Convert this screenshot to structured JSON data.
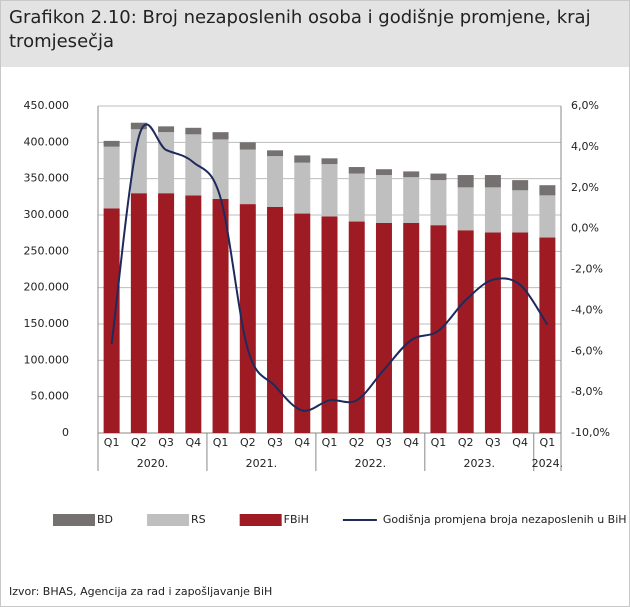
{
  "chart_data": {
    "type": "stacked_bar_line",
    "title": "Grafikon 2.10: Broj nezaposlenih osoba i godišnje promjene, kraj tromjesečja",
    "source": "Izvor: BHAS, Agencija za rad i zapošljavanje BiH",
    "categories": [
      "Q1",
      "Q2",
      "Q3",
      "Q4",
      "Q1",
      "Q2",
      "Q3",
      "Q4",
      "Q1",
      "Q2",
      "Q3",
      "Q4",
      "Q1",
      "Q2",
      "Q3",
      "Q4",
      "Q1"
    ],
    "year_groups": [
      {
        "label": "2020.",
        "size": 4
      },
      {
        "label": "2021.",
        "size": 4
      },
      {
        "label": "2022.",
        "size": 4
      },
      {
        "label": "2023.",
        "size": 4
      },
      {
        "label": "2024.",
        "size": 1
      }
    ],
    "series": [
      {
        "name": "FBiH",
        "color": "#9e1b24",
        "values": [
          309000,
          330000,
          330000,
          327000,
          322000,
          315000,
          311000,
          302000,
          298000,
          291000,
          289000,
          289000,
          286000,
          279000,
          276000,
          276000,
          269000
        ]
      },
      {
        "name": "RS",
        "color": "#bfbfbf",
        "values": [
          85000,
          88000,
          84000,
          84000,
          82000,
          75000,
          70000,
          70000,
          72000,
          66000,
          66000,
          63000,
          62000,
          59000,
          62000,
          58000,
          58000
        ]
      },
      {
        "name": "BD",
        "color": "#767171",
        "values": [
          8000,
          9000,
          8000,
          9000,
          10000,
          10000,
          8000,
          10000,
          8000,
          9000,
          8000,
          8000,
          9000,
          17000,
          17000,
          14000,
          14000
        ]
      },
      {
        "name": "Godišnja promjena broja nezaposlenih u BiH (d.s.)",
        "color": "#1f2a5c",
        "axis": "y2",
        "values": [
          -5.65,
          4.5,
          3.85,
          3.25,
          1.5,
          -5.9,
          -7.7,
          -8.9,
          -8.4,
          -8.4,
          -6.9,
          -5.45,
          -5.0,
          -3.5,
          -2.5,
          -2.75,
          -4.7
        ]
      }
    ],
    "ylim": [
      0,
      450000
    ],
    "yticks": [
      {
        "value": 0,
        "label": "0"
      },
      {
        "value": 50000,
        "label": "50.000"
      },
      {
        "value": 100000,
        "label": "100.000"
      },
      {
        "value": 150000,
        "label": "150.000"
      },
      {
        "value": 200000,
        "label": "200.000"
      },
      {
        "value": 250000,
        "label": "250.000"
      },
      {
        "value": 300000,
        "label": "300.000"
      },
      {
        "value": 350000,
        "label": "350.000"
      },
      {
        "value": 400000,
        "label": "400.000"
      },
      {
        "value": 450000,
        "label": "450.000"
      }
    ],
    "y2lim": [
      -10,
      6
    ],
    "y2ticks": [
      {
        "value": -10,
        "label": "-10,0%"
      },
      {
        "value": -8,
        "label": "-8,0%"
      },
      {
        "value": -6,
        "label": "-6,0%"
      },
      {
        "value": -4,
        "label": "-4,0%"
      },
      {
        "value": -2,
        "label": "-2,0%"
      },
      {
        "value": 0,
        "label": "0,0%"
      },
      {
        "value": 2,
        "label": "2,0%"
      },
      {
        "value": 4,
        "label": "4,0%"
      },
      {
        "value": 6,
        "label": "6,0%"
      }
    ],
    "grid": true
  }
}
